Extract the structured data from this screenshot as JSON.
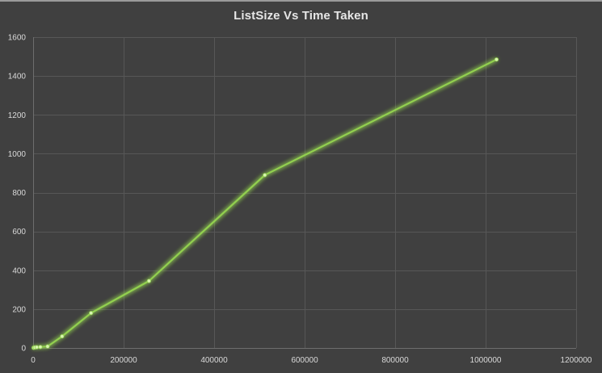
{
  "chart_data": {
    "type": "line",
    "title": "ListSize Vs Time Taken",
    "xlabel": "",
    "ylabel": "",
    "xlim": [
      0,
      1200000
    ],
    "ylim": [
      0,
      1600
    ],
    "xticks": [
      0,
      200000,
      400000,
      600000,
      800000,
      1000000,
      1200000
    ],
    "xtick_labels": [
      "0",
      "200000",
      "400000",
      "600000",
      "800000",
      "1000000",
      "1200000"
    ],
    "yticks": [
      0,
      200,
      400,
      600,
      800,
      1000,
      1200,
      1400,
      1600
    ],
    "ytick_labels": [
      "0",
      "200",
      "400",
      "600",
      "800",
      "1000",
      "1200",
      "1400",
      "1600"
    ],
    "grid": true,
    "legend": "none",
    "series": [
      {
        "color": "#92d050",
        "points": [
          {
            "x": 1000,
            "y": 1
          },
          {
            "x": 2000,
            "y": 2
          },
          {
            "x": 4000,
            "y": 3
          },
          {
            "x": 8000,
            "y": 4
          },
          {
            "x": 16000,
            "y": 5
          },
          {
            "x": 32000,
            "y": 8
          },
          {
            "x": 64000,
            "y": 60
          },
          {
            "x": 128000,
            "y": 180
          },
          {
            "x": 256000,
            "y": 345
          },
          {
            "x": 512000,
            "y": 890
          },
          {
            "x": 1024000,
            "y": 1485
          }
        ]
      }
    ]
  }
}
